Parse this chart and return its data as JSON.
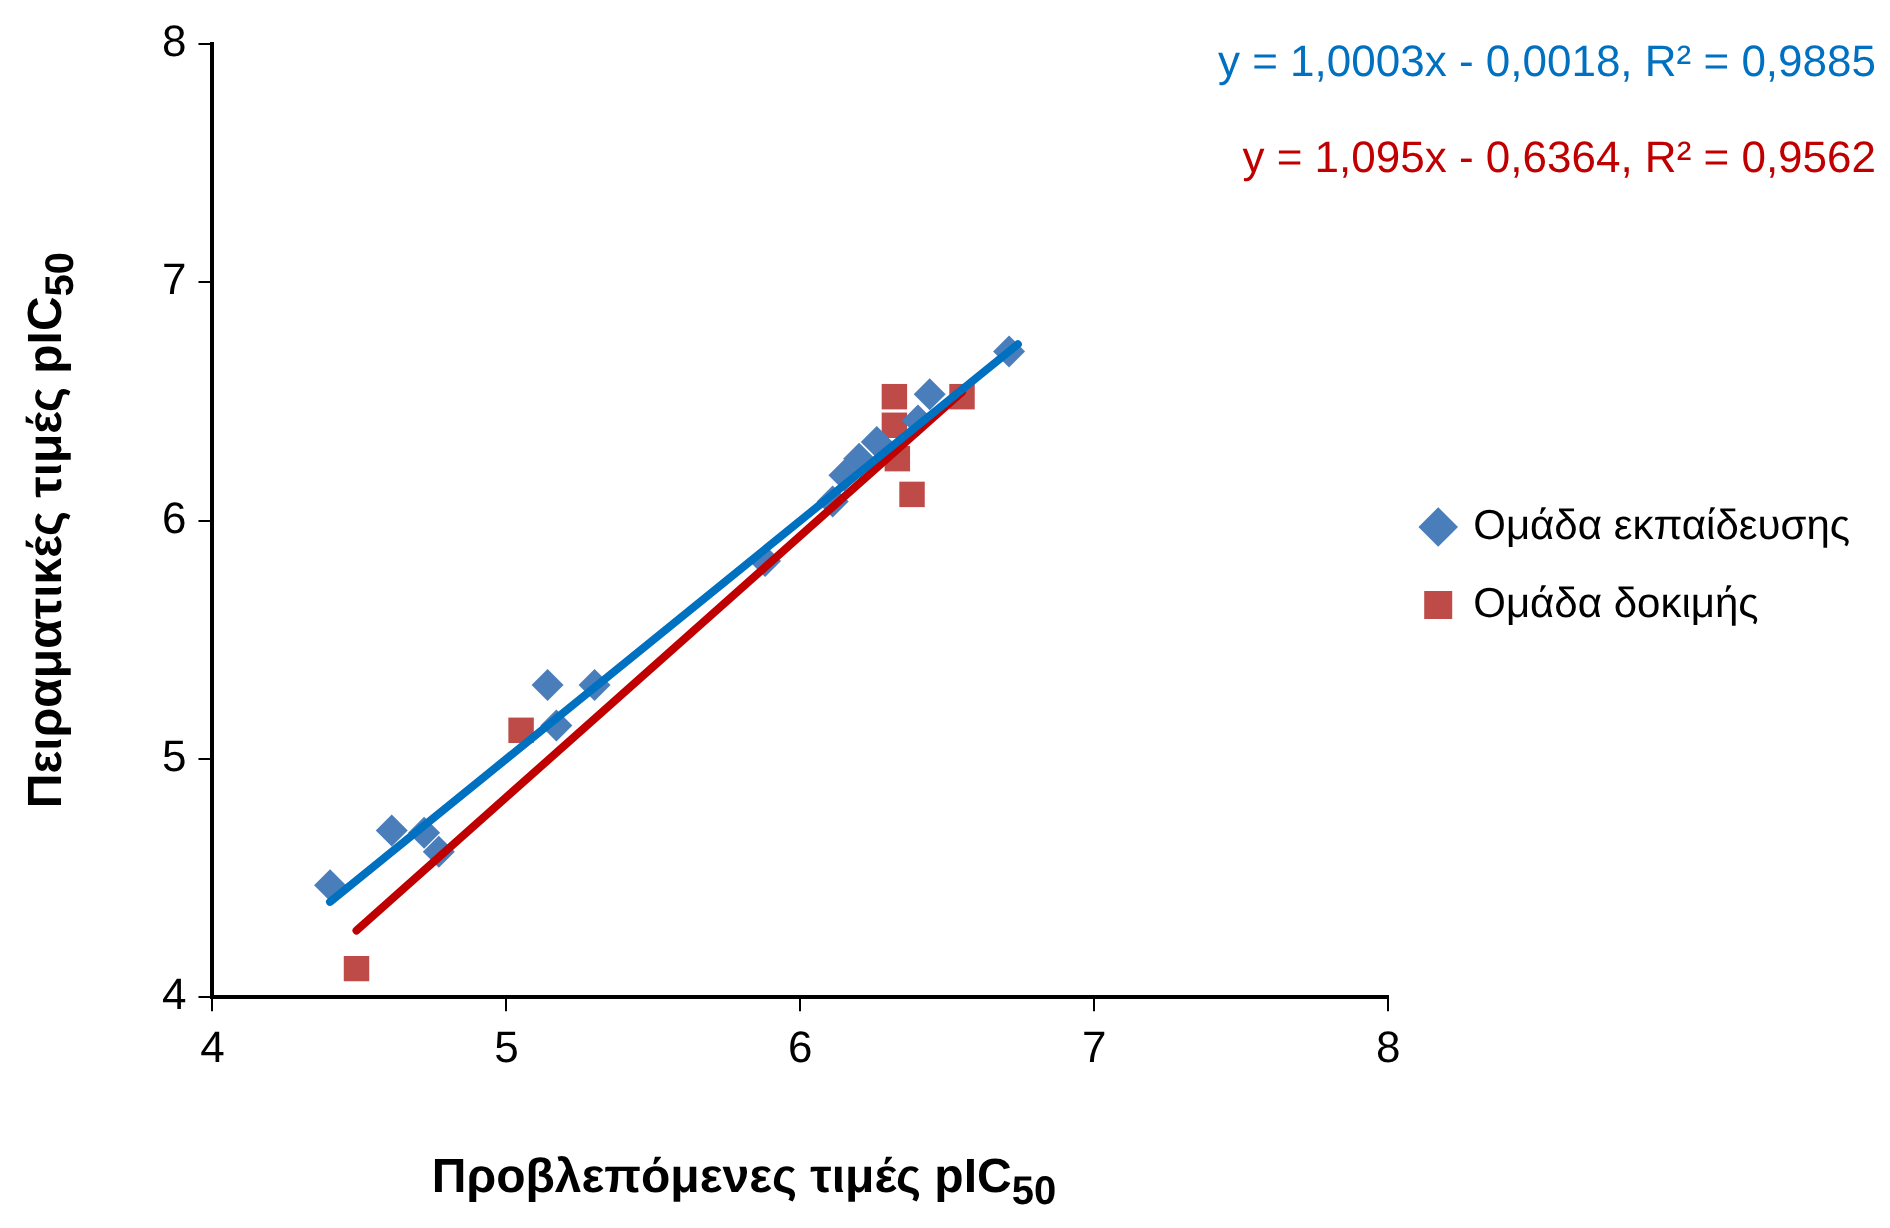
{
  "chart_data": {
    "type": "scatter",
    "xlabel": "Προβλεπόμενες τιμές pIC$_{50}$",
    "ylabel": "Πειραματικές τιμές pIC$_{50}$",
    "annotations": [
      "y = 1,0003x - 0,0018, R² = 0,9885",
      "y = 1,095x - 0,6364, R² = 0,9562"
    ],
    "xlim": [
      4,
      8
    ],
    "xticks": [
      4,
      5,
      6,
      7,
      8
    ],
    "ylim": [
      4,
      8
    ],
    "yticks": [
      4,
      5,
      6,
      7,
      8
    ],
    "grid": false,
    "legend": "right",
    "series": [
      {
        "name": "Ομάδα εκπαίδευσης",
        "color": "#4a7ebb",
        "marker": "diamond",
        "x": [
          4.4,
          4.61,
          4.72,
          4.77,
          5.14,
          5.3,
          5.17,
          5.88,
          6.11,
          6.15,
          6.2,
          6.26,
          6.44,
          6.4,
          6.71
        ],
        "values": [
          4.47,
          4.7,
          4.69,
          4.61,
          5.31,
          5.31,
          5.14,
          5.83,
          6.08,
          6.19,
          6.26,
          6.33,
          6.53,
          6.42,
          6.71
        ]
      },
      {
        "name": "Ομάδα δοκιμής",
        "color": "#be4b48",
        "marker": "square",
        "x": [
          4.49,
          5.05,
          6.32,
          6.55,
          6.32,
          6.33,
          6.38
        ],
        "values": [
          4.12,
          5.12,
          6.52,
          6.52,
          6.4,
          6.26,
          6.11
        ]
      },
      {
        "type": "line",
        "color": "#0070c0",
        "marker": "none",
        "x": [
          4.4,
          6.74
        ],
        "values": [
          4.4,
          6.74
        ]
      },
      {
        "type": "line",
        "color": "#c00000",
        "marker": "none",
        "x": [
          4.49,
          6.55
        ],
        "values": [
          4.28,
          6.54
        ]
      }
    ]
  }
}
